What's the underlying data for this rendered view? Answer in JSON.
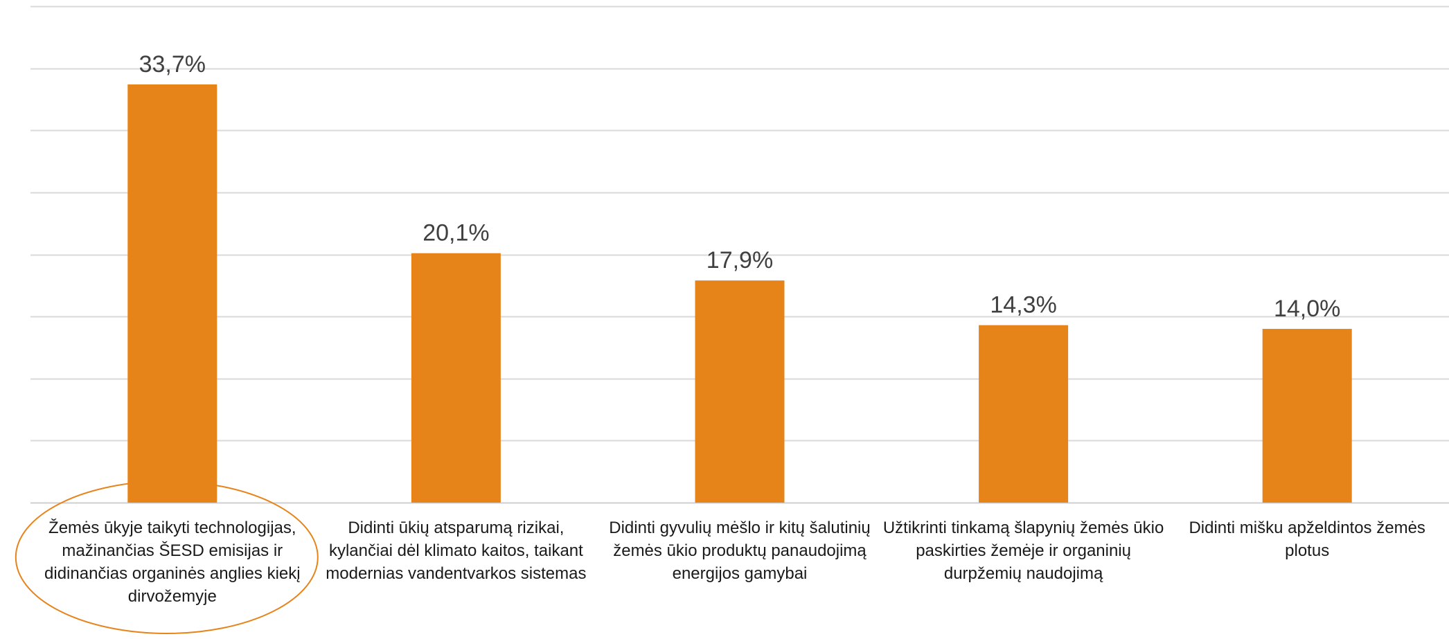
{
  "chart_data": {
    "type": "bar",
    "title": "",
    "xlabel": "",
    "ylabel": "",
    "ylim": [
      0,
      40
    ],
    "gridlines": true,
    "y_axis_visible": false,
    "bar_color": "#E6841A",
    "highlight_color": "#E6841A",
    "highlighted_category_index": 0,
    "categories": [
      "Žemės ūkyje taikyti technologijas, mažinančias ŠESD emisijas ir didinančias organinės anglies kiekį dirvožemyje",
      "Didinti ūkių atsparumą rizikai, kylančiai dėl klimato kaitos, taikant modernias vandentvarkos sistemas",
      "Didinti gyvulių mėšlo ir kitų šalutinių žemės ūkio produktų panaudojimą energijos gamybai",
      "Užtikrinti tinkamą šlapynių žemės ūkio paskirties žemėje ir organinių durpžemių naudojimą",
      "Didinti mišku apželdintos žemės plotus"
    ],
    "values": [
      33.7,
      20.1,
      17.9,
      14.3,
      14.0
    ],
    "data_labels": [
      "33,7%",
      "20,1%",
      "17,9%",
      "14,3%",
      "14,0%"
    ]
  }
}
